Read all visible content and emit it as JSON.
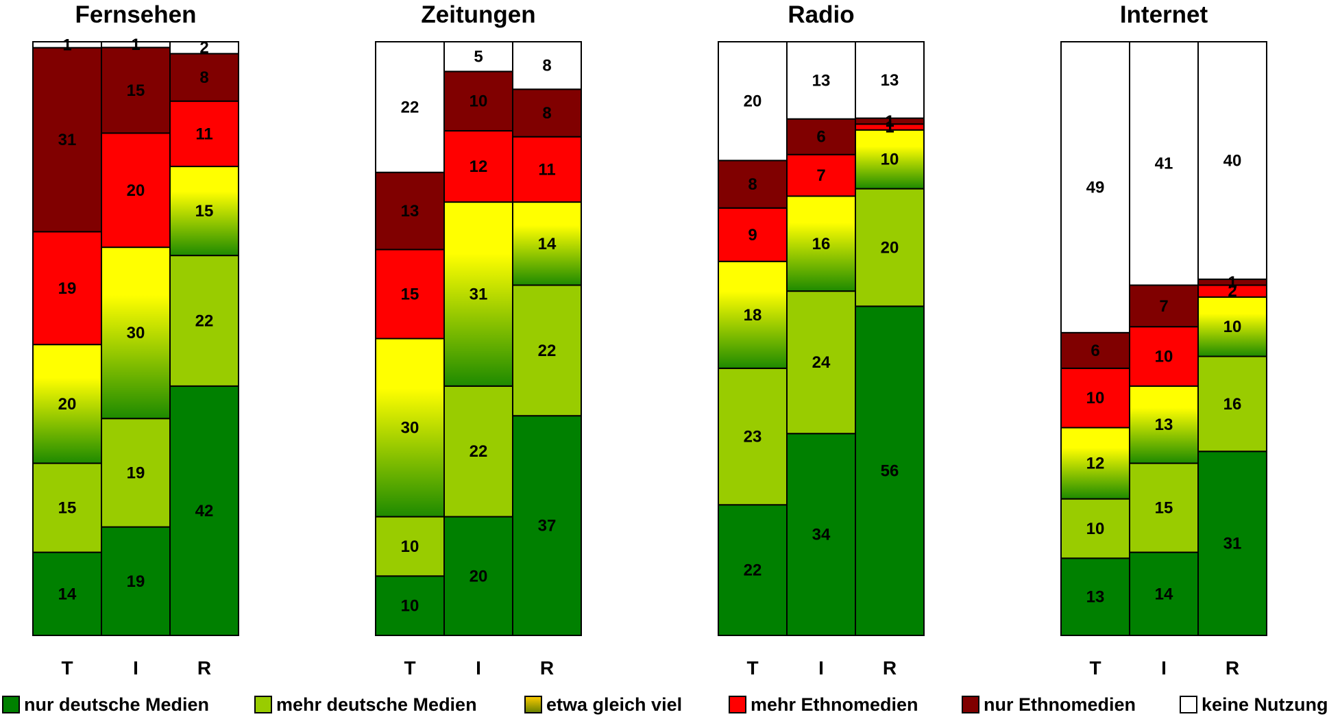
{
  "chart_data": {
    "type": "bar",
    "stacked": true,
    "normalized_percent": true,
    "categories": [
      "T",
      "I",
      "R"
    ],
    "legend": {
      "placement": "bottom",
      "entries": [
        {
          "key": "nur_deutsch",
          "label": "nur deutsche Medien",
          "color": "#008000"
        },
        {
          "key": "mehr_deutsch",
          "label": "mehr deutsche Medien",
          "color": "#99CC00"
        },
        {
          "key": "gleich",
          "label": "etwa gleich viel",
          "color": "#FFFF00",
          "gradient_to": "#008000"
        },
        {
          "key": "mehr_ethno",
          "label": "mehr Ethnomedien",
          "color": "#FF0000"
        },
        {
          "key": "nur_ethno",
          "label": "nur Ethnomedien",
          "color": "#800000"
        },
        {
          "key": "keine",
          "label": "keine Nutzung",
          "color": "#FFFFFF"
        }
      ]
    },
    "panels": [
      {
        "title": "Fernsehen",
        "series": [
          {
            "key": "nur_deutsch",
            "values": [
              14,
              19,
              42
            ]
          },
          {
            "key": "mehr_deutsch",
            "values": [
              15,
              19,
              22
            ]
          },
          {
            "key": "gleich",
            "values": [
              20,
              30,
              15
            ]
          },
          {
            "key": "mehr_ethno",
            "values": [
              19,
              20,
              11
            ]
          },
          {
            "key": "nur_ethno",
            "values": [
              31,
              15,
              8
            ]
          },
          {
            "key": "keine",
            "values": [
              1,
              1,
              2
            ]
          }
        ]
      },
      {
        "title": "Zeitungen",
        "series": [
          {
            "key": "nur_deutsch",
            "values": [
              10,
              20,
              37
            ]
          },
          {
            "key": "mehr_deutsch",
            "values": [
              10,
              22,
              22
            ]
          },
          {
            "key": "gleich",
            "values": [
              30,
              31,
              14
            ]
          },
          {
            "key": "mehr_ethno",
            "values": [
              15,
              12,
              11
            ]
          },
          {
            "key": "nur_ethno",
            "values": [
              13,
              10,
              8
            ]
          },
          {
            "key": "keine",
            "values": [
              22,
              5,
              8
            ]
          }
        ]
      },
      {
        "title": "Radio",
        "series": [
          {
            "key": "nur_deutsch",
            "values": [
              22,
              34,
              56
            ]
          },
          {
            "key": "mehr_deutsch",
            "values": [
              23,
              24,
              20
            ]
          },
          {
            "key": "gleich",
            "values": [
              18,
              16,
              10
            ]
          },
          {
            "key": "mehr_ethno",
            "values": [
              9,
              7,
              1
            ]
          },
          {
            "key": "nur_ethno",
            "values": [
              8,
              6,
              1
            ]
          },
          {
            "key": "keine",
            "values": [
              20,
              13,
              13
            ]
          }
        ]
      },
      {
        "title": "Internet",
        "series": [
          {
            "key": "nur_deutsch",
            "values": [
              13,
              14,
              31
            ]
          },
          {
            "key": "mehr_deutsch",
            "values": [
              10,
              15,
              16
            ]
          },
          {
            "key": "gleich",
            "values": [
              12,
              13,
              10
            ]
          },
          {
            "key": "mehr_ethno",
            "values": [
              10,
              10,
              2
            ]
          },
          {
            "key": "nur_ethno",
            "values": [
              6,
              7,
              1
            ]
          },
          {
            "key": "keine",
            "values": [
              49,
              41,
              40
            ]
          }
        ]
      }
    ]
  }
}
